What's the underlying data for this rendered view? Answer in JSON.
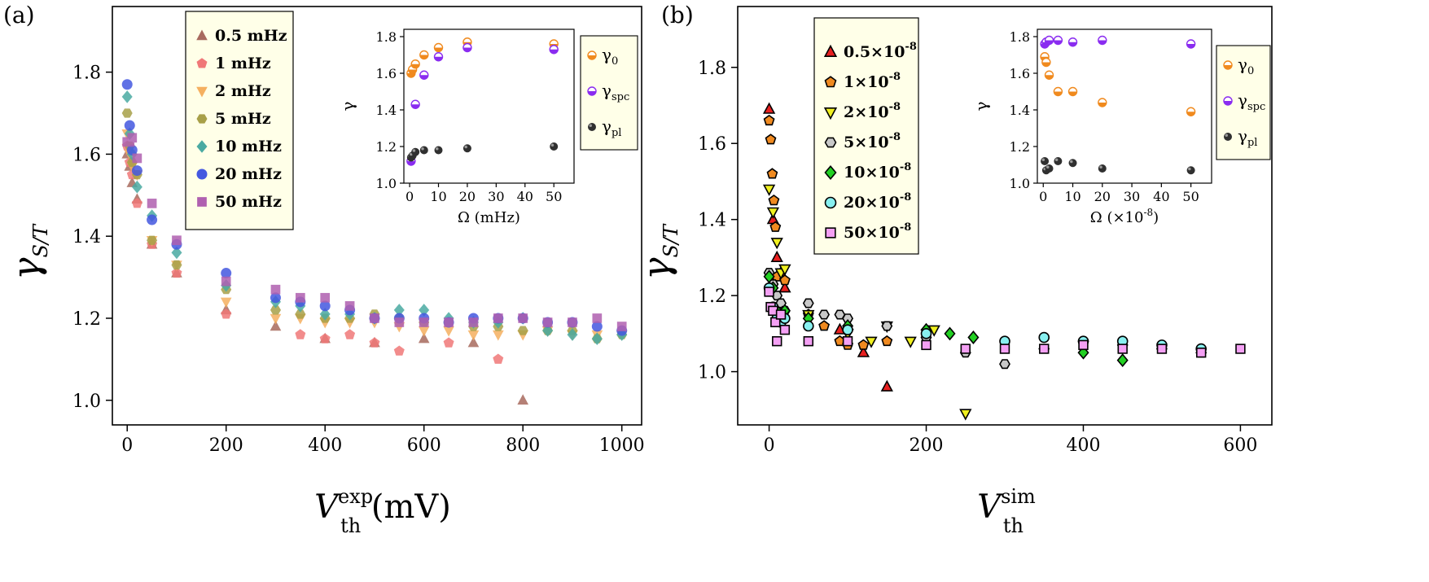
{
  "chart_data": [
    {
      "id": "a",
      "panel_label": "(a)",
      "type": "scatter",
      "ylabel_main": "γ",
      "ylabel_sub": "S/T",
      "xlabel_main": "V",
      "xlabel_sup": "exp",
      "xlabel_sub": "th",
      "xlabel_unit": "(mV)",
      "xlim": [
        -30,
        1040
      ],
      "ylim": [
        0.94,
        1.96
      ],
      "xticks": [
        0,
        200,
        400,
        600,
        800,
        1000
      ],
      "yticks": [
        1.0,
        1.2,
        1.4,
        1.6,
        1.8
      ],
      "series": [
        {
          "name": "0.5 mHz",
          "marker": "triangle",
          "color": "#a86a5e",
          "x": [
            0,
            5,
            10,
            20,
            50,
            100,
            200,
            300,
            400,
            500,
            600,
            700,
            800
          ],
          "y": [
            1.6,
            1.57,
            1.53,
            1.49,
            1.38,
            1.31,
            1.22,
            1.18,
            1.15,
            1.14,
            1.15,
            1.14,
            1.0
          ]
        },
        {
          "name": "1 mHz",
          "marker": "pentagon",
          "color": "#f07878",
          "x": [
            0,
            5,
            10,
            20,
            50,
            100,
            200,
            350,
            400,
            450,
            500,
            550,
            650,
            750
          ],
          "y": [
            1.62,
            1.58,
            1.55,
            1.48,
            1.38,
            1.31,
            1.21,
            1.16,
            1.15,
            1.16,
            1.14,
            1.12,
            1.14,
            1.1
          ]
        },
        {
          "name": "2 mHz",
          "marker": "invtriangle",
          "color": "#f5b060",
          "x": [
            0,
            5,
            10,
            20,
            50,
            100,
            200,
            300,
            350,
            400,
            450,
            500,
            550,
            600,
            650,
            700,
            750,
            800,
            850,
            900,
            950,
            1000
          ],
          "y": [
            1.65,
            1.6,
            1.57,
            1.55,
            1.39,
            1.33,
            1.24,
            1.2,
            1.2,
            1.19,
            1.19,
            1.19,
            1.18,
            1.17,
            1.17,
            1.16,
            1.16,
            1.16,
            1.17,
            1.16,
            1.16,
            1.16
          ]
        },
        {
          "name": "5 mHz",
          "marker": "hexagon",
          "color": "#a8a048",
          "x": [
            0,
            5,
            10,
            20,
            50,
            100,
            200,
            300,
            350,
            400,
            450,
            500,
            550,
            600,
            650,
            700,
            750,
            800,
            850,
            900,
            950,
            1000
          ],
          "y": [
            1.7,
            1.62,
            1.58,
            1.55,
            1.39,
            1.33,
            1.27,
            1.22,
            1.21,
            1.2,
            1.2,
            1.21,
            1.2,
            1.19,
            1.19,
            1.18,
            1.18,
            1.17,
            1.17,
            1.17,
            1.15,
            1.16
          ]
        },
        {
          "name": "10 mHz",
          "marker": "diamond",
          "color": "#4aaaa2",
          "x": [
            0,
            5,
            10,
            20,
            50,
            100,
            200,
            300,
            350,
            400,
            450,
            500,
            550,
            600,
            650,
            700,
            750,
            800,
            850,
            900,
            950,
            1000
          ],
          "y": [
            1.74,
            1.65,
            1.6,
            1.52,
            1.45,
            1.36,
            1.28,
            1.24,
            1.23,
            1.21,
            1.21,
            1.2,
            1.22,
            1.22,
            1.2,
            1.19,
            1.19,
            1.2,
            1.17,
            1.16,
            1.15,
            1.16
          ]
        },
        {
          "name": "20 mHz",
          "marker": "circle",
          "color": "#4458e0",
          "x": [
            0,
            5,
            10,
            20,
            50,
            100,
            200,
            300,
            350,
            400,
            450,
            500,
            550,
            600,
            650,
            700,
            750,
            800,
            850,
            900,
            950,
            1000
          ],
          "y": [
            1.77,
            1.67,
            1.61,
            1.56,
            1.44,
            1.38,
            1.31,
            1.25,
            1.24,
            1.23,
            1.22,
            1.2,
            1.2,
            1.2,
            1.19,
            1.2,
            1.2,
            1.2,
            1.19,
            1.19,
            1.18,
            1.17
          ]
        },
        {
          "name": "50 mHz",
          "marker": "square",
          "color": "#b060b0",
          "x": [
            0,
            5,
            10,
            20,
            50,
            100,
            200,
            300,
            350,
            400,
            450,
            500,
            550,
            600,
            650,
            700,
            750,
            800,
            850,
            900,
            950,
            1000
          ],
          "y": [
            1.63,
            1.63,
            1.64,
            1.59,
            1.48,
            1.39,
            1.29,
            1.27,
            1.25,
            1.25,
            1.23,
            1.2,
            1.19,
            1.19,
            1.19,
            1.19,
            1.2,
            1.2,
            1.19,
            1.19,
            1.2,
            1.18
          ]
        }
      ],
      "inset": {
        "ylabel": "γ",
        "xlabel": "Ω (mHz)",
        "xlim": [
          -2,
          57
        ],
        "ylim": [
          1.0,
          1.84
        ],
        "xticks": [
          0,
          10,
          20,
          30,
          40,
          50
        ],
        "yticks": [
          1.0,
          1.2,
          1.4,
          1.6,
          1.8
        ],
        "series": [
          {
            "name": "γ",
            "sub": "0",
            "color": "#f08a1e",
            "x": [
              0.5,
              1,
              2,
              5,
              10,
              20,
              50
            ],
            "y": [
              1.6,
              1.62,
              1.65,
              1.7,
              1.74,
              1.77,
              1.76
            ]
          },
          {
            "name": "γ",
            "sub": "spc",
            "color": "#8a2cf0",
            "x": [
              0.5,
              2,
              5,
              10,
              20,
              50
            ],
            "y": [
              1.12,
              1.43,
              1.59,
              1.69,
              1.74,
              1.73
            ]
          },
          {
            "name": "γ",
            "sub": "pl",
            "color": "#303030",
            "x": [
              0.5,
              1,
              2,
              5,
              10,
              20,
              50
            ],
            "y": [
              1.14,
              1.15,
              1.17,
              1.18,
              1.18,
              1.19,
              1.2
            ]
          }
        ]
      }
    },
    {
      "id": "b",
      "panel_label": "(b)",
      "type": "scatter",
      "ylabel_main": "γ",
      "ylabel_sub": "S/T",
      "xlabel_main": "V",
      "xlabel_sup": "sim",
      "xlabel_sub": "th",
      "xlabel_unit": "",
      "xlim": [
        -40,
        640
      ],
      "ylim": [
        0.86,
        1.96
      ],
      "xticks": [
        0,
        200,
        400,
        600
      ],
      "yticks": [
        1.0,
        1.2,
        1.4,
        1.6,
        1.8
      ],
      "series": [
        {
          "name": "0.5×10",
          "sup": "-8",
          "marker": "triangle",
          "color": "#e82020",
          "x": [
            0,
            5,
            10,
            15,
            20,
            90,
            120,
            150
          ],
          "y": [
            1.69,
            1.4,
            1.3,
            1.26,
            1.22,
            1.11,
            1.05,
            0.96
          ]
        },
        {
          "name": "1×10",
          "sup": "-8",
          "marker": "pentagon",
          "color": "#f08a20",
          "x": [
            0,
            2,
            4,
            6,
            8,
            10,
            20,
            50,
            70,
            90,
            100,
            120,
            150
          ],
          "y": [
            1.66,
            1.61,
            1.52,
            1.45,
            1.38,
            1.25,
            1.24,
            1.15,
            1.12,
            1.08,
            1.07,
            1.07,
            1.08
          ]
        },
        {
          "name": "2×10",
          "sup": "-8",
          "marker": "invtriangle",
          "color": "#f0f020",
          "x": [
            0,
            5,
            10,
            15,
            20,
            50,
            100,
            130,
            150,
            180,
            210,
            250
          ],
          "y": [
            1.48,
            1.42,
            1.34,
            1.26,
            1.27,
            1.15,
            1.1,
            1.08,
            1.12,
            1.08,
            1.11,
            0.89
          ]
        },
        {
          "name": "5×10",
          "sup": "-8",
          "marker": "hexagon",
          "color": "#c8c8c8",
          "x": [
            0,
            5,
            10,
            15,
            20,
            50,
            70,
            90,
            100,
            150,
            200,
            250,
            300,
            350,
            400,
            450,
            500,
            550
          ],
          "y": [
            1.26,
            1.23,
            1.2,
            1.18,
            1.16,
            1.18,
            1.15,
            1.15,
            1.14,
            1.12,
            1.09,
            1.05,
            1.02,
            1.06,
            1.08,
            1.07,
            1.06,
            1.05
          ]
        },
        {
          "name": "10×10",
          "sup": "-8",
          "marker": "diamond",
          "color": "#22d022",
          "x": [
            0,
            5,
            10,
            20,
            50,
            100,
            200,
            230,
            260,
            400,
            450
          ],
          "y": [
            1.25,
            1.22,
            1.16,
            1.16,
            1.14,
            1.12,
            1.11,
            1.1,
            1.09,
            1.05,
            1.03
          ]
        },
        {
          "name": "20×10",
          "sup": "-8",
          "marker": "circle",
          "color": "#88f0f0",
          "x": [
            0,
            5,
            10,
            15,
            20,
            50,
            100,
            200,
            300,
            350,
            400,
            450,
            500,
            550
          ],
          "y": [
            1.22,
            1.17,
            1.14,
            1.13,
            1.14,
            1.12,
            1.11,
            1.1,
            1.08,
            1.09,
            1.08,
            1.08,
            1.07,
            1.06
          ]
        },
        {
          "name": "50×10",
          "sup": "-8",
          "marker": "square",
          "color": "#f4a0f4",
          "x": [
            0,
            2,
            5,
            8,
            10,
            15,
            20,
            50,
            100,
            200,
            250,
            300,
            350,
            400,
            450,
            500,
            550,
            600
          ],
          "y": [
            1.21,
            1.17,
            1.16,
            1.13,
            1.08,
            1.15,
            1.11,
            1.08,
            1.08,
            1.07,
            1.06,
            1.06,
            1.06,
            1.07,
            1.06,
            1.06,
            1.05,
            1.06
          ]
        }
      ],
      "inset": {
        "ylabel": "γ",
        "xlabel": "Ω (×10",
        "xlabel_sup": "-8",
        "xlabel_close": ")",
        "xlim": [
          -2,
          57
        ],
        "ylim": [
          1.0,
          1.84
        ],
        "xticks": [
          0,
          10,
          20,
          30,
          40,
          50
        ],
        "yticks": [
          1.0,
          1.2,
          1.4,
          1.6,
          1.8
        ],
        "series": [
          {
            "name": "γ",
            "sub": "0",
            "color": "#f08a1e",
            "x": [
              0.5,
              1,
              2,
              5,
              10,
              20,
              50
            ],
            "y": [
              1.69,
              1.66,
              1.59,
              1.5,
              1.5,
              1.44,
              1.39
            ]
          },
          {
            "name": "γ",
            "sub": "spc",
            "color": "#8a2cf0",
            "x": [
              0.5,
              1,
              2,
              5,
              10,
              20,
              50
            ],
            "y": [
              1.76,
              1.77,
              1.78,
              1.78,
              1.77,
              1.78,
              1.76
            ]
          },
          {
            "name": "γ",
            "sub": "pl",
            "color": "#303030",
            "x": [
              0.5,
              1,
              2,
              5,
              10,
              20,
              50
            ],
            "y": [
              1.12,
              1.07,
              1.08,
              1.12,
              1.11,
              1.08,
              1.07
            ]
          }
        ]
      }
    }
  ]
}
